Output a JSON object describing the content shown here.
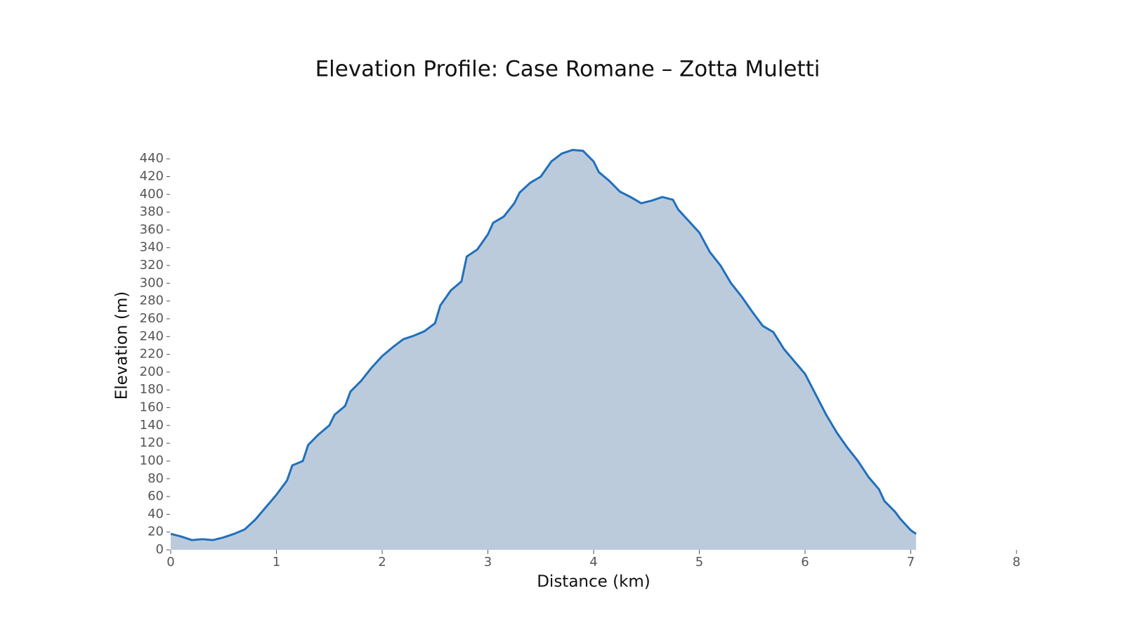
{
  "chart_data": {
    "type": "area",
    "title": "Elevation Profile: Case Romane – Zotta Muletti",
    "x_label": "Distance (km)",
    "y_label": "Elevation (m)",
    "x": [
      0,
      0.1,
      0.2,
      0.3,
      0.4,
      0.5,
      0.6,
      0.7,
      0.8,
      0.9,
      1.0,
      1.1,
      1.15,
      1.25,
      1.3,
      1.4,
      1.5,
      1.55,
      1.65,
      1.7,
      1.8,
      1.9,
      2.0,
      2.1,
      2.2,
      2.3,
      2.4,
      2.5,
      2.55,
      2.65,
      2.75,
      2.8,
      2.9,
      3.0,
      3.05,
      3.15,
      3.25,
      3.3,
      3.4,
      3.5,
      3.6,
      3.7,
      3.8,
      3.9,
      4.0,
      4.05,
      4.15,
      4.25,
      4.35,
      4.45,
      4.55,
      4.65,
      4.75,
      4.8,
      4.9,
      5.0,
      5.1,
      5.2,
      5.3,
      5.4,
      5.5,
      5.6,
      5.7,
      5.8,
      5.9,
      6.0,
      6.1,
      6.2,
      6.3,
      6.4,
      6.5,
      6.6,
      6.7,
      6.75,
      6.85,
      6.9,
      7.0,
      7.05
    ],
    "values": [
      18,
      15,
      11,
      12,
      11,
      14,
      18,
      23,
      34,
      48,
      62,
      78,
      95,
      100,
      118,
      130,
      140,
      152,
      162,
      178,
      190,
      205,
      218,
      228,
      237,
      241,
      246,
      255,
      275,
      292,
      302,
      330,
      338,
      355,
      368,
      375,
      390,
      402,
      413,
      420,
      437,
      446,
      450,
      449,
      437,
      425,
      415,
      403,
      397,
      390,
      393,
      397,
      394,
      383,
      370,
      357,
      335,
      320,
      300,
      285,
      268,
      252,
      245,
      226,
      212,
      198,
      175,
      152,
      132,
      115,
      100,
      82,
      68,
      55,
      43,
      35,
      22,
      18
    ],
    "color": "#1f70bd",
    "fill_color": "#bccbdc",
    "xlim": [
      0,
      8
    ],
    "xticks": [
      0,
      1,
      2,
      3,
      4,
      5,
      6,
      7,
      8
    ],
    "ylim": [
      0,
      452
    ],
    "yticks": [
      0,
      20,
      40,
      60,
      80,
      100,
      120,
      140,
      160,
      180,
      200,
      220,
      240,
      260,
      280,
      300,
      320,
      340,
      360,
      380,
      400,
      420,
      440
    ],
    "grid": false
  }
}
